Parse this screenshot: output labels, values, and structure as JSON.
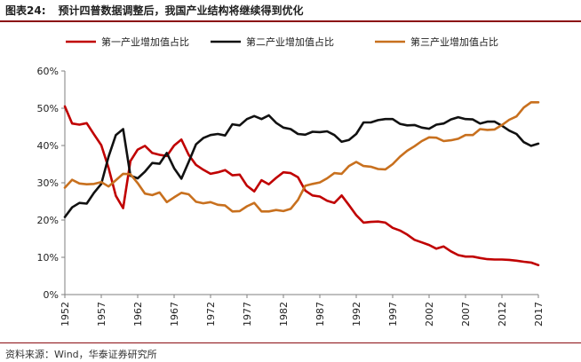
{
  "figure": {
    "label": "图表24:",
    "title": "预计四普数据调整后，我国产业结构将继续得到优化",
    "source": "资料来源：Wind，华泰证券研究所"
  },
  "chart_data": {
    "type": "line",
    "xlabel": "",
    "ylabel": "",
    "ylim": [
      0,
      60
    ],
    "yticks": [
      "0%",
      "10%",
      "20%",
      "30%",
      "40%",
      "50%",
      "60%"
    ],
    "xlim": [
      1952,
      2017
    ],
    "xticks": [
      "1952",
      "1957",
      "1962",
      "1967",
      "1972",
      "1977",
      "1982",
      "1987",
      "1992",
      "1997",
      "2002",
      "2007",
      "2012",
      "2017"
    ],
    "grid": false,
    "legend_position": "top",
    "x": [
      1952,
      1953,
      1954,
      1955,
      1956,
      1957,
      1958,
      1959,
      1960,
      1961,
      1962,
      1963,
      1964,
      1965,
      1966,
      1967,
      1968,
      1969,
      1970,
      1971,
      1972,
      1973,
      1974,
      1975,
      1976,
      1977,
      1978,
      1979,
      1980,
      1981,
      1982,
      1983,
      1984,
      1985,
      1986,
      1987,
      1988,
      1989,
      1990,
      1991,
      1992,
      1993,
      1994,
      1995,
      1996,
      1997,
      1998,
      1999,
      2000,
      2001,
      2002,
      2003,
      2004,
      2005,
      2006,
      2007,
      2008,
      2009,
      2010,
      2011,
      2012,
      2013,
      2014,
      2015,
      2016,
      2017
    ],
    "series": [
      {
        "name": "第一产业增加值占比",
        "color": "#c00000",
        "values": [
          50.5,
          45.9,
          45.6,
          46.0,
          43.0,
          40.1,
          34.0,
          26.5,
          23.2,
          35.8,
          38.9,
          39.9,
          38.0,
          37.5,
          37.2,
          40.0,
          41.6,
          37.5,
          34.8,
          33.5,
          32.4,
          32.8,
          33.4,
          32.0,
          32.2,
          29.2,
          27.7,
          30.7,
          29.6,
          31.3,
          32.8,
          32.6,
          31.5,
          27.9,
          26.6,
          26.3,
          25.2,
          24.6,
          26.6,
          24.0,
          21.3,
          19.3,
          19.5,
          19.6,
          19.3,
          17.9,
          17.2,
          16.1,
          14.7,
          14.0,
          13.3,
          12.3,
          12.9,
          11.6,
          10.6,
          10.2,
          10.2,
          9.8,
          9.5,
          9.4,
          9.4,
          9.3,
          9.1,
          8.8,
          8.6,
          7.9
        ]
      },
      {
        "name": "第二产业增加值占比",
        "color": "#111111",
        "values": [
          20.8,
          23.4,
          24.6,
          24.4,
          27.3,
          29.7,
          37.0,
          42.8,
          44.4,
          31.9,
          31.2,
          33.0,
          35.3,
          35.1,
          38.0,
          33.9,
          31.1,
          35.6,
          40.3,
          42.0,
          42.8,
          43.1,
          42.7,
          45.7,
          45.4,
          47.1,
          47.9,
          47.1,
          48.1,
          46.1,
          44.8,
          44.4,
          43.1,
          42.9,
          43.7,
          43.6,
          43.8,
          42.8,
          41.0,
          41.5,
          43.1,
          46.2,
          46.2,
          46.8,
          47.1,
          47.1,
          45.8,
          45.4,
          45.5,
          44.8,
          44.5,
          45.6,
          45.9,
          47.0,
          47.6,
          47.1,
          47.0,
          45.9,
          46.4,
          46.4,
          45.3,
          44.0,
          43.1,
          40.9,
          39.9,
          40.5
        ]
      },
      {
        "name": "第三产业增加值占比",
        "color": "#c8701e",
        "values": [
          28.7,
          30.8,
          29.8,
          29.6,
          29.7,
          30.2,
          29.0,
          30.7,
          32.4,
          32.3,
          29.9,
          27.1,
          26.7,
          27.4,
          24.8,
          26.1,
          27.3,
          26.9,
          24.9,
          24.5,
          24.8,
          24.1,
          23.9,
          22.3,
          22.4,
          23.7,
          24.6,
          22.3,
          22.3,
          22.7,
          22.4,
          23.0,
          25.4,
          29.2,
          29.7,
          30.1,
          31.2,
          32.6,
          32.4,
          34.5,
          35.6,
          34.5,
          34.3,
          33.7,
          33.6,
          35.0,
          37.0,
          38.6,
          39.8,
          41.2,
          42.2,
          42.1,
          41.2,
          41.4,
          41.8,
          42.8,
          42.8,
          44.4,
          44.2,
          44.3,
          45.5,
          46.9,
          47.8,
          50.2,
          51.6,
          51.6
        ]
      }
    ]
  }
}
